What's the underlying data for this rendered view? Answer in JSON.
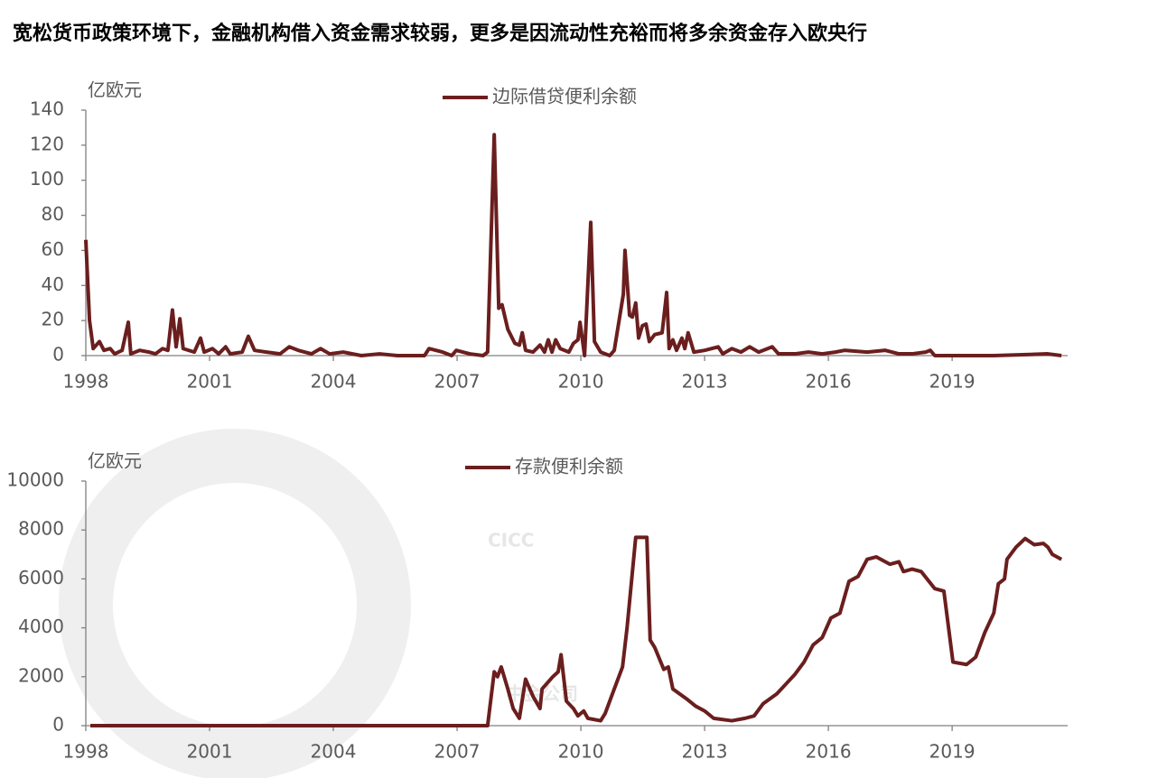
{
  "title": "宽松货币政策环境下，金融机构借入资金需求较弱，更多是因流动性充裕而将多余资金存入欧央行",
  "watermark": [
    "CICC",
    "中金公司"
  ],
  "chart_data": [
    {
      "type": "line",
      "y_label": "亿欧元",
      "xlim": [
        1998,
        2021.8
      ],
      "ylim": [
        0,
        140
      ],
      "xticks": [
        1998,
        2001,
        2004,
        2007,
        2010,
        2013,
        2016,
        2019
      ],
      "yticks": [
        0,
        20,
        40,
        60,
        80,
        100,
        120,
        140
      ],
      "series": [
        {
          "name": "边际借贷便利余额",
          "color": "#6b1e1e",
          "x": [
            1998.0,
            1998.09,
            1998.18,
            1998.33,
            1998.44,
            1998.59,
            1998.7,
            1998.88,
            1999.03,
            1999.09,
            1999.31,
            1999.53,
            1999.69,
            1999.86,
            1999.99,
            2000.1,
            2000.19,
            2000.28,
            2000.36,
            2000.63,
            2000.78,
            2000.87,
            2001.07,
            2001.22,
            2001.39,
            2001.5,
            2001.79,
            2001.94,
            2002.09,
            2002.38,
            2002.71,
            2002.93,
            2003.15,
            2003.47,
            2003.69,
            2003.91,
            2004.24,
            2004.68,
            2005.12,
            2005.55,
            2006.21,
            2006.32,
            2006.65,
            2006.87,
            2006.98,
            2007.31,
            2007.63,
            2007.74,
            2007.9,
            2008.01,
            2008.09,
            2008.23,
            2008.4,
            2008.51,
            2008.58,
            2008.66,
            2008.84,
            2009.01,
            2009.12,
            2009.21,
            2009.3,
            2009.39,
            2009.5,
            2009.71,
            2009.82,
            2009.93,
            2009.98,
            2010.09,
            2010.24,
            2010.33,
            2010.48,
            2010.7,
            2010.81,
            2011.03,
            2011.07,
            2011.18,
            2011.25,
            2011.33,
            2011.4,
            2011.49,
            2011.58,
            2011.66,
            2011.79,
            2011.97,
            2012.08,
            2012.14,
            2012.23,
            2012.32,
            2012.45,
            2012.52,
            2012.6,
            2012.74,
            2013.0,
            2013.33,
            2013.44,
            2013.66,
            2013.88,
            2014.09,
            2014.31,
            2014.64,
            2014.79,
            2015.19,
            2015.52,
            2015.85,
            2016.17,
            2016.39,
            2016.94,
            2017.38,
            2017.71,
            2018.03,
            2018.36,
            2018.47,
            2018.58,
            2020.01,
            2021.32,
            2021.65
          ],
          "values": [
            66,
            20,
            4,
            8,
            3,
            4,
            1,
            3,
            19,
            1,
            3,
            2,
            1,
            4,
            3,
            26,
            5,
            21,
            4,
            2,
            10,
            2,
            4,
            1,
            5,
            1,
            2,
            11,
            3,
            2,
            1,
            5,
            3,
            1,
            4,
            1,
            2,
            0,
            1,
            0,
            0,
            4,
            2,
            0,
            3,
            1,
            0,
            2,
            126,
            27,
            29,
            15,
            7,
            6,
            13,
            3,
            2,
            6,
            2,
            9,
            2,
            9,
            4,
            2,
            7,
            9,
            19,
            0,
            76,
            8,
            2,
            0,
            3,
            35,
            60,
            23,
            22,
            30,
            10,
            17,
            18,
            8,
            12,
            13,
            36,
            4,
            9,
            3,
            10,
            4,
            13,
            2,
            3,
            5,
            1,
            4,
            2,
            5,
            2,
            5,
            1,
            1,
            2,
            1,
            2,
            3,
            2,
            3,
            1,
            1,
            2,
            3,
            0,
            0,
            1,
            0
          ]
        }
      ]
    },
    {
      "type": "line",
      "y_label": "亿欧元",
      "xlim": [
        1998,
        2021.8
      ],
      "ylim": [
        0,
        10000
      ],
      "xticks": [
        1998,
        2001,
        2004,
        2007,
        2010,
        2013,
        2016,
        2019
      ],
      "yticks": [
        0,
        2000,
        4000,
        6000,
        8000,
        10000
      ],
      "series": [
        {
          "name": "存款便利余额",
          "color": "#6b1e1e",
          "x": [
            1998.11,
            2007.74,
            2007.9,
            2007.98,
            2008.07,
            2008.23,
            2008.36,
            2008.51,
            2008.66,
            2008.84,
            2009.01,
            2009.06,
            2009.32,
            2009.45,
            2009.52,
            2009.65,
            2009.82,
            2009.93,
            2010.07,
            2010.17,
            2010.48,
            2010.59,
            2010.81,
            2011.01,
            2011.12,
            2011.33,
            2011.6,
            2011.68,
            2011.79,
            2012.01,
            2012.12,
            2012.23,
            2012.56,
            2012.78,
            2013.0,
            2013.22,
            2013.66,
            2013.98,
            2014.2,
            2014.42,
            2014.75,
            2014.97,
            2015.19,
            2015.41,
            2015.63,
            2015.85,
            2016.06,
            2016.28,
            2016.5,
            2016.72,
            2016.94,
            2017.16,
            2017.49,
            2017.71,
            2017.82,
            2018.03,
            2018.25,
            2018.58,
            2018.8,
            2019.02,
            2019.35,
            2019.57,
            2019.79,
            2020.01,
            2020.12,
            2020.27,
            2020.33,
            2020.55,
            2020.77,
            2020.99,
            2021.21,
            2021.32,
            2021.43,
            2021.65
          ],
          "values": [
            0,
            0,
            2200,
            2000,
            2400,
            1500,
            700,
            300,
            1900,
            1200,
            700,
            1500,
            2000,
            2200,
            2900,
            1000,
            700,
            400,
            600,
            300,
            200,
            500,
            1500,
            2400,
            4000,
            7700,
            7700,
            3500,
            3200,
            2300,
            2400,
            1500,
            1100,
            800,
            600,
            300,
            200,
            300,
            400,
            900,
            1300,
            1700,
            2100,
            2600,
            3300,
            3600,
            4400,
            4600,
            5900,
            6100,
            6800,
            6900,
            6600,
            6700,
            6300,
            6400,
            6300,
            5600,
            5500,
            2600,
            2500,
            2800,
            3800,
            4600,
            5800,
            6000,
            6800,
            7300,
            7650,
            7400,
            7450,
            7300,
            7000,
            6800
          ]
        }
      ]
    }
  ]
}
